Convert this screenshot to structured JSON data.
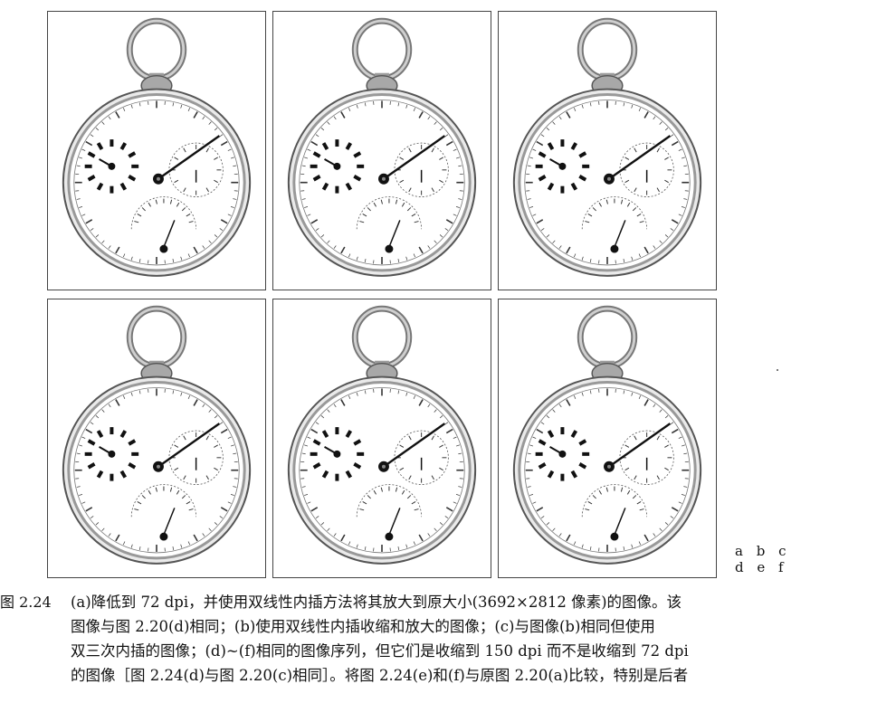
{
  "figure": {
    "panels": [
      {
        "id": "a",
        "alt": "pocket watch image (a)"
      },
      {
        "id": "b",
        "alt": "pocket watch image (b)"
      },
      {
        "id": "c",
        "alt": "pocket watch image (c)"
      },
      {
        "id": "d",
        "alt": "pocket watch image (d)"
      },
      {
        "id": "e",
        "alt": "pocket watch image (e)"
      },
      {
        "id": "f",
        "alt": "pocket watch image (f)"
      }
    ],
    "panel_labels": {
      "row1": "a b c",
      "row2": "d e f"
    }
  },
  "caption": {
    "label": "图 2.24",
    "lines": [
      "(a)降低到 72 dpi，并使用双线性内插方法将其放大到原大小(3692×2812 像素)的图像。该",
      "图像与图 2.20(d)相同；(b)使用双线性内插收缩和放大的图像；(c)与图像(b)相同但使用",
      "双三次内插的图像；(d)~(f)相同的图像序列，但它们是收缩到 150 dpi 而不是收缩到 72 dpi",
      "的图像［图 2.24(d)与图 2.20(c)相同］。将图 2.24(e)和(f)与原图 2.20(a)比较，特别是后者"
    ]
  }
}
